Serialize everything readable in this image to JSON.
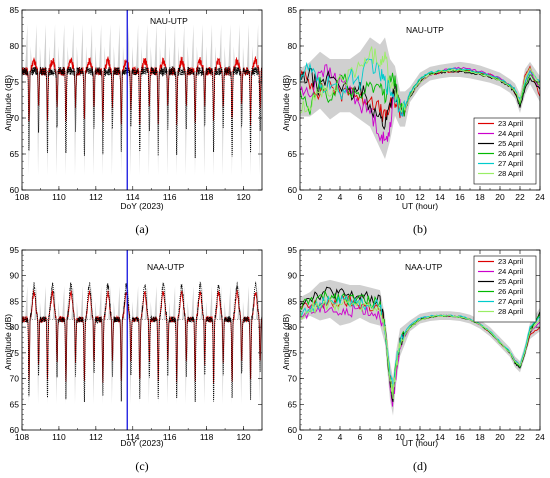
{
  "figure": {
    "captions": [
      "(a)",
      "(b)",
      "(c)",
      "(d)"
    ]
  },
  "chart_data": [
    {
      "type": "line",
      "panel": "a",
      "title": "NAU-UTP",
      "xlabel": "DoY (2023)",
      "ylabel": "Amplitude (dB)",
      "xlim": [
        108,
        121
      ],
      "ylim": [
        60,
        85
      ],
      "xticks": [
        108,
        110,
        112,
        114,
        116,
        118,
        120
      ],
      "yticks": [
        60,
        65,
        70,
        75,
        80,
        85
      ],
      "marker_line_x": 113.7,
      "marker_color": "#0000dd",
      "reference_level": 76.5,
      "series": [
        {
          "color": "#dd0000",
          "style": "solid",
          "day_peak": 77.5,
          "night_min": 69.5
        },
        {
          "color": "#000000",
          "style": "dotted",
          "day_peak": 76.5,
          "night_min": 65.0
        }
      ],
      "envelope_color": "#d0d0d0",
      "envelope_range": [
        62,
        83
      ]
    },
    {
      "type": "line",
      "panel": "b",
      "title": "NAU-UTP",
      "xlabel": "UT (hour)",
      "ylabel": "Amplitude (dB)",
      "xlim": [
        0,
        24
      ],
      "ylim": [
        60,
        85
      ],
      "xticks": [
        0,
        2,
        4,
        6,
        8,
        10,
        12,
        14,
        16,
        18,
        20,
        22,
        24
      ],
      "yticks": [
        60,
        65,
        70,
        75,
        80,
        85
      ],
      "legend": "bottom-right",
      "x": [
        0,
        1,
        2,
        3,
        4,
        5,
        6,
        7,
        8,
        8.5,
        9,
        9.5,
        10,
        10.5,
        11,
        12,
        13,
        14,
        15,
        16,
        17,
        18,
        19,
        20,
        21,
        21.5,
        22,
        22.5,
        23,
        24
      ],
      "series": [
        {
          "name": "23 April",
          "color": "#dd0000",
          "values": [
            76,
            75,
            73.5,
            75,
            73,
            74.5,
            72.5,
            73,
            71,
            70,
            71.5,
            72.5,
            71,
            71,
            73,
            75,
            76,
            76.3,
            76.5,
            76.5,
            76.5,
            76.3,
            76,
            75.5,
            74.5,
            73.5,
            72,
            76,
            77,
            73
          ]
        },
        {
          "name": "24 April",
          "color": "#cc00cc",
          "values": [
            74,
            73,
            77,
            76,
            75,
            74,
            72,
            71,
            68,
            66.5,
            69,
            74,
            71.5,
            71,
            73,
            75,
            76,
            76.5,
            76.8,
            77,
            76.8,
            76.5,
            76,
            75.5,
            74.5,
            74,
            72,
            75,
            76.5,
            74
          ]
        },
        {
          "name": "25 April",
          "color": "#000000",
          "values": [
            75,
            76,
            74,
            76,
            75,
            73,
            74,
            72,
            70,
            69,
            72,
            74.5,
            71,
            71,
            73,
            75,
            76,
            76.3,
            76.5,
            76.5,
            76.3,
            76,
            75.7,
            75.2,
            74.3,
            73.5,
            71.5,
            74,
            75.5,
            74
          ]
        },
        {
          "name": "26 April",
          "color": "#00bb00",
          "values": [
            73,
            71,
            75,
            72,
            76,
            74,
            73,
            75,
            74,
            73,
            76,
            75,
            71,
            71.5,
            73.5,
            75.5,
            76.3,
            76.5,
            76.7,
            76.7,
            76.5,
            76.2,
            75.8,
            75.3,
            74.5,
            74,
            72,
            74.5,
            76,
            74.5
          ]
        },
        {
          "name": "27 April",
          "color": "#00cccc",
          "values": [
            76,
            77,
            74,
            75,
            73,
            76,
            75,
            78,
            76,
            75,
            74,
            73,
            71.5,
            71.5,
            73.5,
            75.5,
            76.3,
            76.6,
            76.8,
            76.8,
            76.6,
            76.3,
            75.9,
            75.4,
            74.6,
            74,
            72.5,
            75,
            76.5,
            75
          ]
        },
        {
          "name": "28 April",
          "color": "#99ee66",
          "values": [
            71,
            72,
            74,
            73,
            75,
            76,
            77,
            79,
            78,
            79,
            75,
            74,
            71.5,
            71,
            73,
            75,
            76,
            76.4,
            76.6,
            76.6,
            76.4,
            76.1,
            75.7,
            75.2,
            74.4,
            73.8,
            72.2,
            75.5,
            77,
            74.5
          ]
        }
      ],
      "envelope_color": "#d0d0d0"
    },
    {
      "type": "line",
      "panel": "c",
      "title": "NAA-UTP",
      "xlabel": "DoY (2023)",
      "ylabel": "Amplitude (dB)",
      "xlim": [
        108,
        121
      ],
      "ylim": [
        60,
        95
      ],
      "xticks": [
        108,
        110,
        112,
        114,
        116,
        118,
        120
      ],
      "yticks": [
        60,
        65,
        70,
        75,
        80,
        85,
        90,
        95
      ],
      "marker_line_x": 113.7,
      "marker_color": "#0000dd",
      "reference_level": 81.5,
      "series": [
        {
          "color": "#dd0000",
          "style": "solid",
          "day_peak": 85.0,
          "night_min": 69.5
        },
        {
          "color": "#000000",
          "style": "dotted",
          "day_peak": 86.0,
          "night_min": 66.0
        }
      ],
      "envelope_color": "#d0d0d0",
      "envelope_range": [
        65,
        88
      ]
    },
    {
      "type": "line",
      "panel": "d",
      "title": "NAA-UTP",
      "xlabel": "UT (hour)",
      "ylabel": "Amplitude (dB)",
      "xlim": [
        0,
        24
      ],
      "ylim": [
        60,
        95
      ],
      "xticks": [
        0,
        2,
        4,
        6,
        8,
        10,
        12,
        14,
        16,
        18,
        20,
        22,
        24
      ],
      "yticks": [
        60,
        65,
        70,
        75,
        80,
        85,
        90,
        95
      ],
      "legend": "top-right",
      "x": [
        0,
        1,
        2,
        3,
        4,
        5,
        6,
        7,
        8,
        8.5,
        9,
        9.3,
        9.6,
        10,
        11,
        12,
        13,
        14,
        15,
        16,
        17,
        18,
        19,
        20,
        21,
        21.5,
        22,
        22.5,
        23,
        24
      ],
      "series": [
        {
          "name": "23 April",
          "color": "#dd0000",
          "values": [
            83.5,
            84,
            84.5,
            84.5,
            85,
            85,
            84.5,
            84,
            83.5,
            80,
            70,
            67,
            72,
            77,
            80,
            81.5,
            82,
            82.2,
            82.2,
            82,
            81.5,
            80.5,
            79,
            77,
            75,
            73.5,
            72.5,
            75,
            78.5,
            80
          ]
        },
        {
          "name": "24 April",
          "color": "#cc00cc",
          "values": [
            82,
            83,
            83.5,
            84,
            82.5,
            83,
            84,
            83,
            82.5,
            79,
            68,
            65,
            71,
            76.5,
            80,
            81.5,
            82,
            82.2,
            82.2,
            82,
            81.5,
            80.5,
            79,
            77,
            75,
            73.5,
            72.5,
            75.5,
            79,
            81
          ]
        },
        {
          "name": "25 April",
          "color": "#000000",
          "values": [
            85,
            86,
            86.5,
            87,
            86.5,
            86,
            86,
            85.5,
            85,
            80,
            69,
            66,
            72,
            77,
            80,
            81.5,
            82,
            82.2,
            82.2,
            82,
            81.5,
            80.5,
            79,
            77,
            75,
            73,
            72,
            75,
            79,
            83
          ]
        },
        {
          "name": "26 April",
          "color": "#00bb00",
          "values": [
            84,
            85,
            85.5,
            86,
            86,
            85.5,
            85.5,
            85,
            84.5,
            80,
            70,
            67,
            72.5,
            77,
            80,
            81.5,
            82,
            82.2,
            82.2,
            82,
            81.5,
            80.5,
            79,
            77,
            75,
            73.2,
            72.3,
            75.5,
            79.5,
            82.5
          ]
        },
        {
          "name": "27 April",
          "color": "#00cccc",
          "values": [
            83,
            84,
            84.5,
            85,
            85,
            85,
            84.5,
            84.5,
            84,
            80,
            71,
            68,
            73,
            77.5,
            80.5,
            81.8,
            82.2,
            82.3,
            82.3,
            82.1,
            81.6,
            80.6,
            79.2,
            77.2,
            75.2,
            73.5,
            72.6,
            75.8,
            80,
            82
          ]
        },
        {
          "name": "28 April",
          "color": "#99ee66",
          "values": [
            82.5,
            83.5,
            84,
            84.5,
            84.5,
            84.5,
            84,
            84,
            83.5,
            79.5,
            70,
            67,
            72,
            77,
            80,
            81.5,
            82,
            82.2,
            82.2,
            82,
            81.5,
            80.5,
            79,
            77,
            75,
            73.4,
            72.4,
            75.3,
            79.2,
            81.5
          ]
        }
      ],
      "envelope_color": "#d0d0d0"
    }
  ]
}
